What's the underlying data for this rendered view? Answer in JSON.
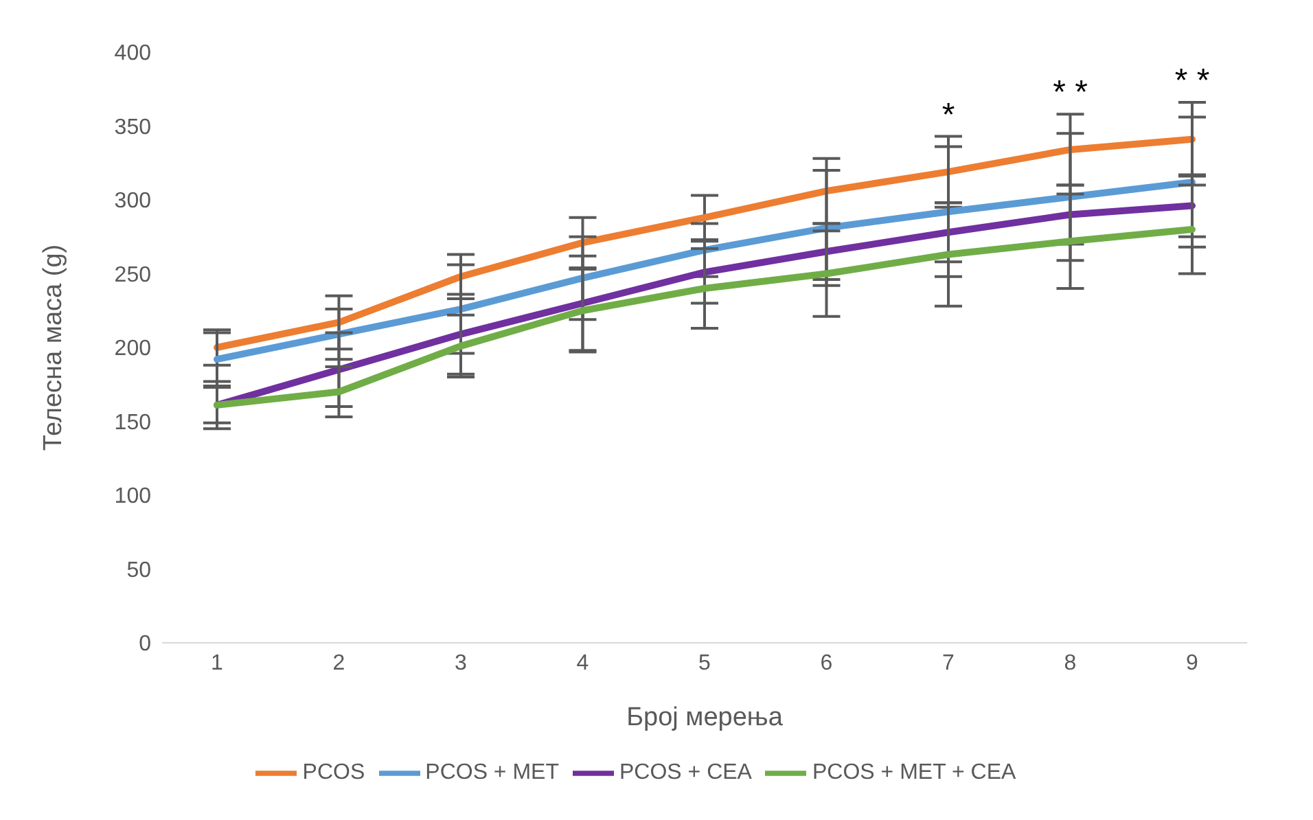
{
  "chart_data": {
    "type": "line",
    "xlabel": "Број мерења",
    "ylabel": "Телесна маса (g)",
    "categories": [
      "1",
      "2",
      "3",
      "4",
      "5",
      "6",
      "7",
      "8",
      "9"
    ],
    "ylim": [
      0,
      400
    ],
    "yticks": [
      0,
      50,
      100,
      150,
      200,
      250,
      300,
      350,
      400
    ],
    "grid": false,
    "legend": "bottom",
    "marker": "none",
    "line_style": "solid",
    "series": [
      {
        "name": "PCOS",
        "color": "#ed7d31",
        "values": [
          200,
          217,
          248,
          271,
          288,
          306,
          319,
          334,
          341
        ],
        "errors": [
          12,
          18,
          15,
          17,
          15,
          22,
          24,
          24,
          25
        ]
      },
      {
        "name": "PCOS + MET",
        "color": "#5b9bd5",
        "values": [
          192,
          209,
          226,
          247,
          266,
          281,
          292,
          302,
          312
        ],
        "errors": [
          18,
          17,
          30,
          28,
          18,
          39,
          44,
          43,
          44
        ]
      },
      {
        "name": "PCOS + CEA",
        "color": "#7030a0",
        "values": [
          161,
          185,
          209,
          230,
          251,
          265,
          278,
          290,
          296
        ],
        "errors": [
          16,
          25,
          27,
          32,
          21,
          19,
          20,
          20,
          21
        ]
      },
      {
        "name": "PCOS + MET + CEA",
        "color": "#70ad47",
        "values": [
          161,
          170,
          201,
          225,
          240,
          250,
          263,
          272,
          280
        ],
        "errors": [
          12,
          17,
          21,
          28,
          27,
          29,
          35,
          32,
          30
        ]
      }
    ],
    "annotations": [
      "*",
      "* *",
      "* *"
    ]
  }
}
